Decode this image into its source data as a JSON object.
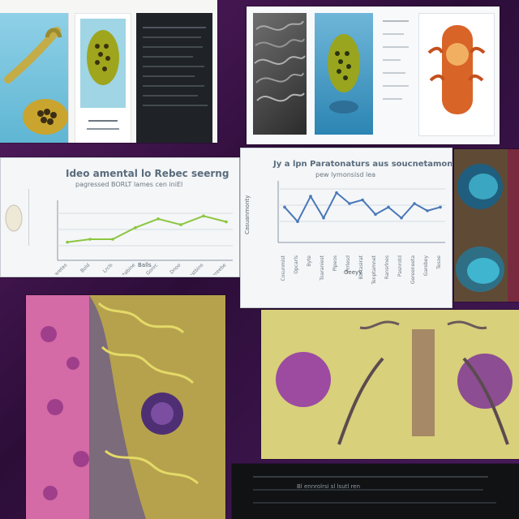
{
  "colors": {
    "background": "#3a1446",
    "sheet": "#f4f6f8",
    "dark_panel": "#1f2328",
    "green_line": "#8cc63f",
    "blue_line": "#4a78b8",
    "histology_pink": "#d46aa6",
    "histology_yellow": "#d7c94d",
    "insect_gold": "#d7b55a",
    "teal": "#3ba6c1",
    "orange": "#d86428"
  },
  "icons": {
    "top_left_specimen": "plant-specimen-icon",
    "top_middle_specimen": "beetle-specimen-icon",
    "top_right_specimen": "organism-anatomy-icon",
    "middle_left_sample": "sample-dish-icon",
    "right_eye_sample": "eye-cell-icon",
    "bottom_left_texture": "tissue-pattern-icon",
    "bottom_right_texture": "insect-anatomy-icon"
  },
  "chart_left": {
    "title": "Ideo amental lo Rebec seerng",
    "subtitle": "pagressed BORLT lames cen iniEl",
    "categories": [
      "Arbaretes",
      "Bold",
      "Lrcls",
      "Nastabine",
      "Gonrc",
      "Dnoo",
      "Arastbins",
      "Wereebe"
    ],
    "values": [
      4,
      5,
      5,
      9,
      12,
      10,
      13,
      11
    ],
    "xlabel": "Balls"
  },
  "chart_right": {
    "title": "Jy a lpn Paratonaturs aus soucnetamont and",
    "subtitle": "pew lymonsisd lea",
    "categories": [
      "Cosunmist",
      "Opcarls",
      "Byte",
      "Toaraniest",
      "Plpeos",
      "Prrlesd",
      "Bartasirat",
      "Tenptamnet",
      "Ransrlnes",
      "Pasnrotd",
      "Gereeneeta",
      "Garebey",
      "Tesoe"
    ],
    "values": [
      8,
      4,
      11,
      5,
      12,
      9,
      10,
      6,
      8,
      5,
      9,
      7,
      8
    ],
    "xlabel": "Geeyy",
    "ylabel": "Casuanmonty"
  },
  "footer_text": "Bl ennrolrsi sl lsutl ren"
}
